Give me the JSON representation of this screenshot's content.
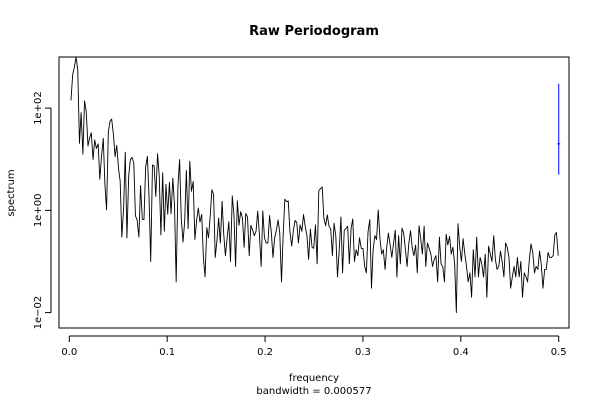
{
  "chart_data": {
    "type": "line",
    "title": "Raw Periodogram",
    "xlabel": "frequency",
    "sublabel": "bandwidth = 0.000577",
    "ylabel": "spectrum",
    "y_scale": "log10",
    "xlim": [
      -0.0105,
      0.5105
    ],
    "ylim": [
      0.005,
      1000
    ],
    "x_ticks": [
      0.0,
      0.1,
      0.2,
      0.3,
      0.4,
      0.5
    ],
    "x_tick_labels": [
      "0.0",
      "0.1",
      "0.2",
      "0.3",
      "0.4",
      "0.5"
    ],
    "y_ticks": [
      0.01,
      1,
      100
    ],
    "y_tick_labels": [
      "1e−02",
      "1e+00",
      "1e+02"
    ],
    "colors": {
      "line": "#000000",
      "ci_bar": "#0000ff"
    },
    "ci_bar": {
      "x": 0.5,
      "y_low": 5,
      "y_mid": 20,
      "y_high": 300
    },
    "series": [
      {
        "x": [
          0.00173,
          0.00347,
          0.0052,
          0.00694,
          0.00867,
          0.0104,
          0.0121,
          0.0139,
          0.0156,
          0.0173,
          0.0191,
          0.0208,
          0.0225,
          0.0243,
          0.026,
          0.0277,
          0.0295,
          0.0312,
          0.0329,
          0.0347,
          0.0364,
          0.0381,
          0.0399,
          0.0416,
          0.0433,
          0.0451,
          0.0468,
          0.0485,
          0.0503,
          0.052,
          0.0537,
          0.0555,
          0.0572,
          0.0589,
          0.0607,
          0.0624,
          0.0641,
          0.0659,
          0.0676,
          0.0693,
          0.0711,
          0.0728,
          0.0746,
          0.0763,
          0.078,
          0.0798,
          0.0815,
          0.0832,
          0.085,
          0.0867,
          0.0884,
          0.0902,
          0.0919,
          0.0936,
          0.0954,
          0.0971,
          0.0988,
          0.1006,
          0.1023,
          0.104,
          0.1058,
          0.1075,
          0.1092,
          0.111,
          0.1127,
          0.1144,
          0.1162,
          0.1179,
          0.1196,
          0.1214,
          0.1231,
          0.1248,
          0.1266,
          0.1283,
          0.1301,
          0.1318,
          0.1335,
          0.1353,
          0.137,
          0.1387,
          0.1405,
          0.1422,
          0.1439,
          0.1457,
          0.1474,
          0.1491,
          0.1509,
          0.1526,
          0.1543,
          0.1561,
          0.1578,
          0.1595,
          0.1613,
          0.163,
          0.1647,
          0.1665,
          0.1682,
          0.1699,
          0.1717,
          0.1734,
          0.1751,
          0.1769,
          0.1786,
          0.1803,
          0.1821,
          0.1838,
          0.1855,
          0.1873,
          0.189,
          0.1908,
          0.1925,
          0.1942,
          0.196,
          0.1977,
          0.1994,
          0.2012,
          0.2029,
          0.2046,
          0.2064,
          0.2081,
          0.2098,
          0.2116,
          0.2133,
          0.215,
          0.2168,
          0.2185,
          0.2202,
          0.222,
          0.2237,
          0.2254,
          0.2272,
          0.2289,
          0.2306,
          0.2324,
          0.2341,
          0.2358,
          0.2376,
          0.2393,
          0.241,
          0.2428,
          0.2445,
          0.2463,
          0.248,
          0.2497,
          0.2515,
          0.2532,
          0.2549,
          0.2567,
          0.2584,
          0.2601,
          0.2619,
          0.2636,
          0.2653,
          0.2671,
          0.2688,
          0.2705,
          0.2723,
          0.274,
          0.2757,
          0.2775,
          0.2792,
          0.2809,
          0.2827,
          0.2844,
          0.2861,
          0.2879,
          0.2896,
          0.2913,
          0.2931,
          0.2948,
          0.2965,
          0.2983,
          0.3,
          0.3018,
          0.3035,
          0.3052,
          0.307,
          0.3087,
          0.3104,
          0.3122,
          0.3139,
          0.3156,
          0.3174,
          0.3191,
          0.3208,
          0.3226,
          0.3243,
          0.326,
          0.3278,
          0.3295,
          0.3312,
          0.333,
          0.3347,
          0.3364,
          0.3382,
          0.3399,
          0.3416,
          0.3434,
          0.3451,
          0.3468,
          0.3486,
          0.3503,
          0.352,
          0.3538,
          0.3555,
          0.3573,
          0.359,
          0.3607,
          0.3625,
          0.3642,
          0.3659,
          0.3677,
          0.3694,
          0.3711,
          0.3729,
          0.3746,
          0.3763,
          0.3781,
          0.3798,
          0.3815,
          0.3833,
          0.385,
          0.3867,
          0.3885,
          0.3902,
          0.3919,
          0.3937,
          0.3954,
          0.3971,
          0.3989,
          0.4006,
          0.4023,
          0.4041,
          0.4058,
          0.4075,
          0.4093,
          0.411,
          0.4127,
          0.4145,
          0.4162,
          0.418,
          0.4197,
          0.4214,
          0.4232,
          0.4249,
          0.4266,
          0.4284,
          0.4301,
          0.4318,
          0.4336,
          0.4353,
          0.437,
          0.4388,
          0.4405,
          0.4422,
          0.444,
          0.4457,
          0.4474,
          0.4492,
          0.4509,
          0.4526,
          0.4544,
          0.4561,
          0.4578,
          0.4596,
          0.4613,
          0.463,
          0.4648,
          0.4665,
          0.4682,
          0.47,
          0.4717,
          0.4735,
          0.4752,
          0.4769,
          0.4787,
          0.4804,
          0.4821,
          0.4839,
          0.4856,
          0.4873,
          0.4891,
          0.4908,
          0.4925,
          0.4943,
          0.496,
          0.4977,
          0.4995
        ],
        "y": [
          141.2,
          454.6,
          631.5,
          1000.0,
          556.3,
          20.5,
          81.9,
          12.6,
          138.4,
          87.2,
          18.2,
          26.4,
          32.9,
          9.9,
          23.9,
          16.3,
          19.9,
          4.05,
          11.2,
          25.8,
          3.23,
          1.02,
          34.3,
          55.1,
          61.2,
          30.4,
          11.3,
          18.7,
          6.64,
          3.69,
          0.3,
          1.1,
          13.7,
          0.29,
          4.72,
          9.86,
          10.9,
          8.46,
          0.78,
          0.65,
          0.3,
          3.06,
          0.67,
          0.66,
          6.98,
          11.4,
          1.77,
          0.1,
          7.73,
          7.38,
          1.87,
          12.8,
          4.7,
          0.33,
          5.44,
          0.39,
          3.23,
          0.84,
          3.52,
          0.86,
          4.27,
          1.25,
          0.04,
          2.99,
          9.86,
          0.7,
          0.24,
          0.62,
          6.01,
          0.44,
          9.18,
          2.36,
          3.66,
          0.27,
          0.64,
          1.11,
          0.59,
          0.83,
          0.12,
          0.05,
          0.46,
          0.29,
          0.74,
          2.54,
          2.04,
          0.12,
          0.26,
          0.71,
          0.23,
          1.51,
          0.34,
          0.13,
          0.29,
          0.6,
          0.1,
          1.92,
          0.84,
          0.08,
          1.55,
          0.51,
          0.94,
          0.71,
          0.19,
          0.87,
          0.74,
          0.13,
          0.51,
          0.41,
          0.32,
          0.39,
          0.97,
          0.35,
          0.08,
          0.98,
          0.29,
          0.23,
          0.23,
          0.79,
          0.37,
          0.12,
          0.29,
          0.41,
          0.65,
          0.37,
          0.04,
          0.33,
          1.65,
          1.48,
          1.53,
          0.39,
          0.2,
          0.4,
          0.63,
          0.58,
          0.23,
          0.52,
          0.39,
          0.83,
          0.49,
          0.32,
          0.11,
          0.43,
          0.19,
          0.18,
          0.52,
          0.09,
          2.42,
          2.67,
          2.86,
          0.7,
          0.5,
          0.82,
          0.49,
          0.43,
          0.13,
          0.56,
          0.31,
          0.05,
          0.16,
          0.74,
          0.06,
          0.41,
          0.44,
          0.49,
          0.09,
          0.44,
          0.68,
          0.1,
          0.17,
          0.13,
          0.29,
          0.18,
          0.18,
          0.08,
          0.06,
          0.38,
          0.66,
          0.03,
          0.17,
          0.32,
          0.27,
          1.02,
          0.28,
          0.14,
          0.17,
          0.07,
          0.19,
          0.36,
          0.21,
          0.12,
          0.22,
          0.41,
          0.05,
          0.32,
          0.09,
          0.45,
          0.36,
          0.17,
          0.08,
          0.22,
          0.4,
          0.19,
          0.13,
          0.21,
          0.06,
          0.5,
          0.28,
          0.14,
          0.49,
          0.08,
          0.23,
          0.18,
          0.14,
          0.08,
          0.11,
          0.13,
          0.04,
          0.3,
          0.09,
          0.08,
          0.04,
          0.34,
          0.21,
          0.31,
          0.14,
          0.19,
          0.09,
          0.01,
          0.55,
          0.19,
          0.1,
          0.28,
          0.14,
          0.08,
          0.04,
          0.06,
          0.02,
          0.17,
          0.05,
          0.3,
          0.05,
          0.12,
          0.09,
          0.05,
          0.14,
          0.02,
          0.2,
          0.14,
          0.1,
          0.32,
          0.11,
          0.07,
          0.08,
          0.16,
          0.1,
          0.05,
          0.23,
          0.19,
          0.12,
          0.03,
          0.05,
          0.08,
          0.05,
          0.12,
          0.05,
          0.1,
          0.02,
          0.06,
          0.05,
          0.04,
          0.11,
          0.22,
          0.15,
          0.06,
          0.08,
          0.07,
          0.16,
          0.09,
          0.03,
          0.07,
          0.07,
          0.15,
          0.12,
          0.12,
          0.13,
          0.33,
          0.37,
          0.13
        ]
      }
    ]
  }
}
